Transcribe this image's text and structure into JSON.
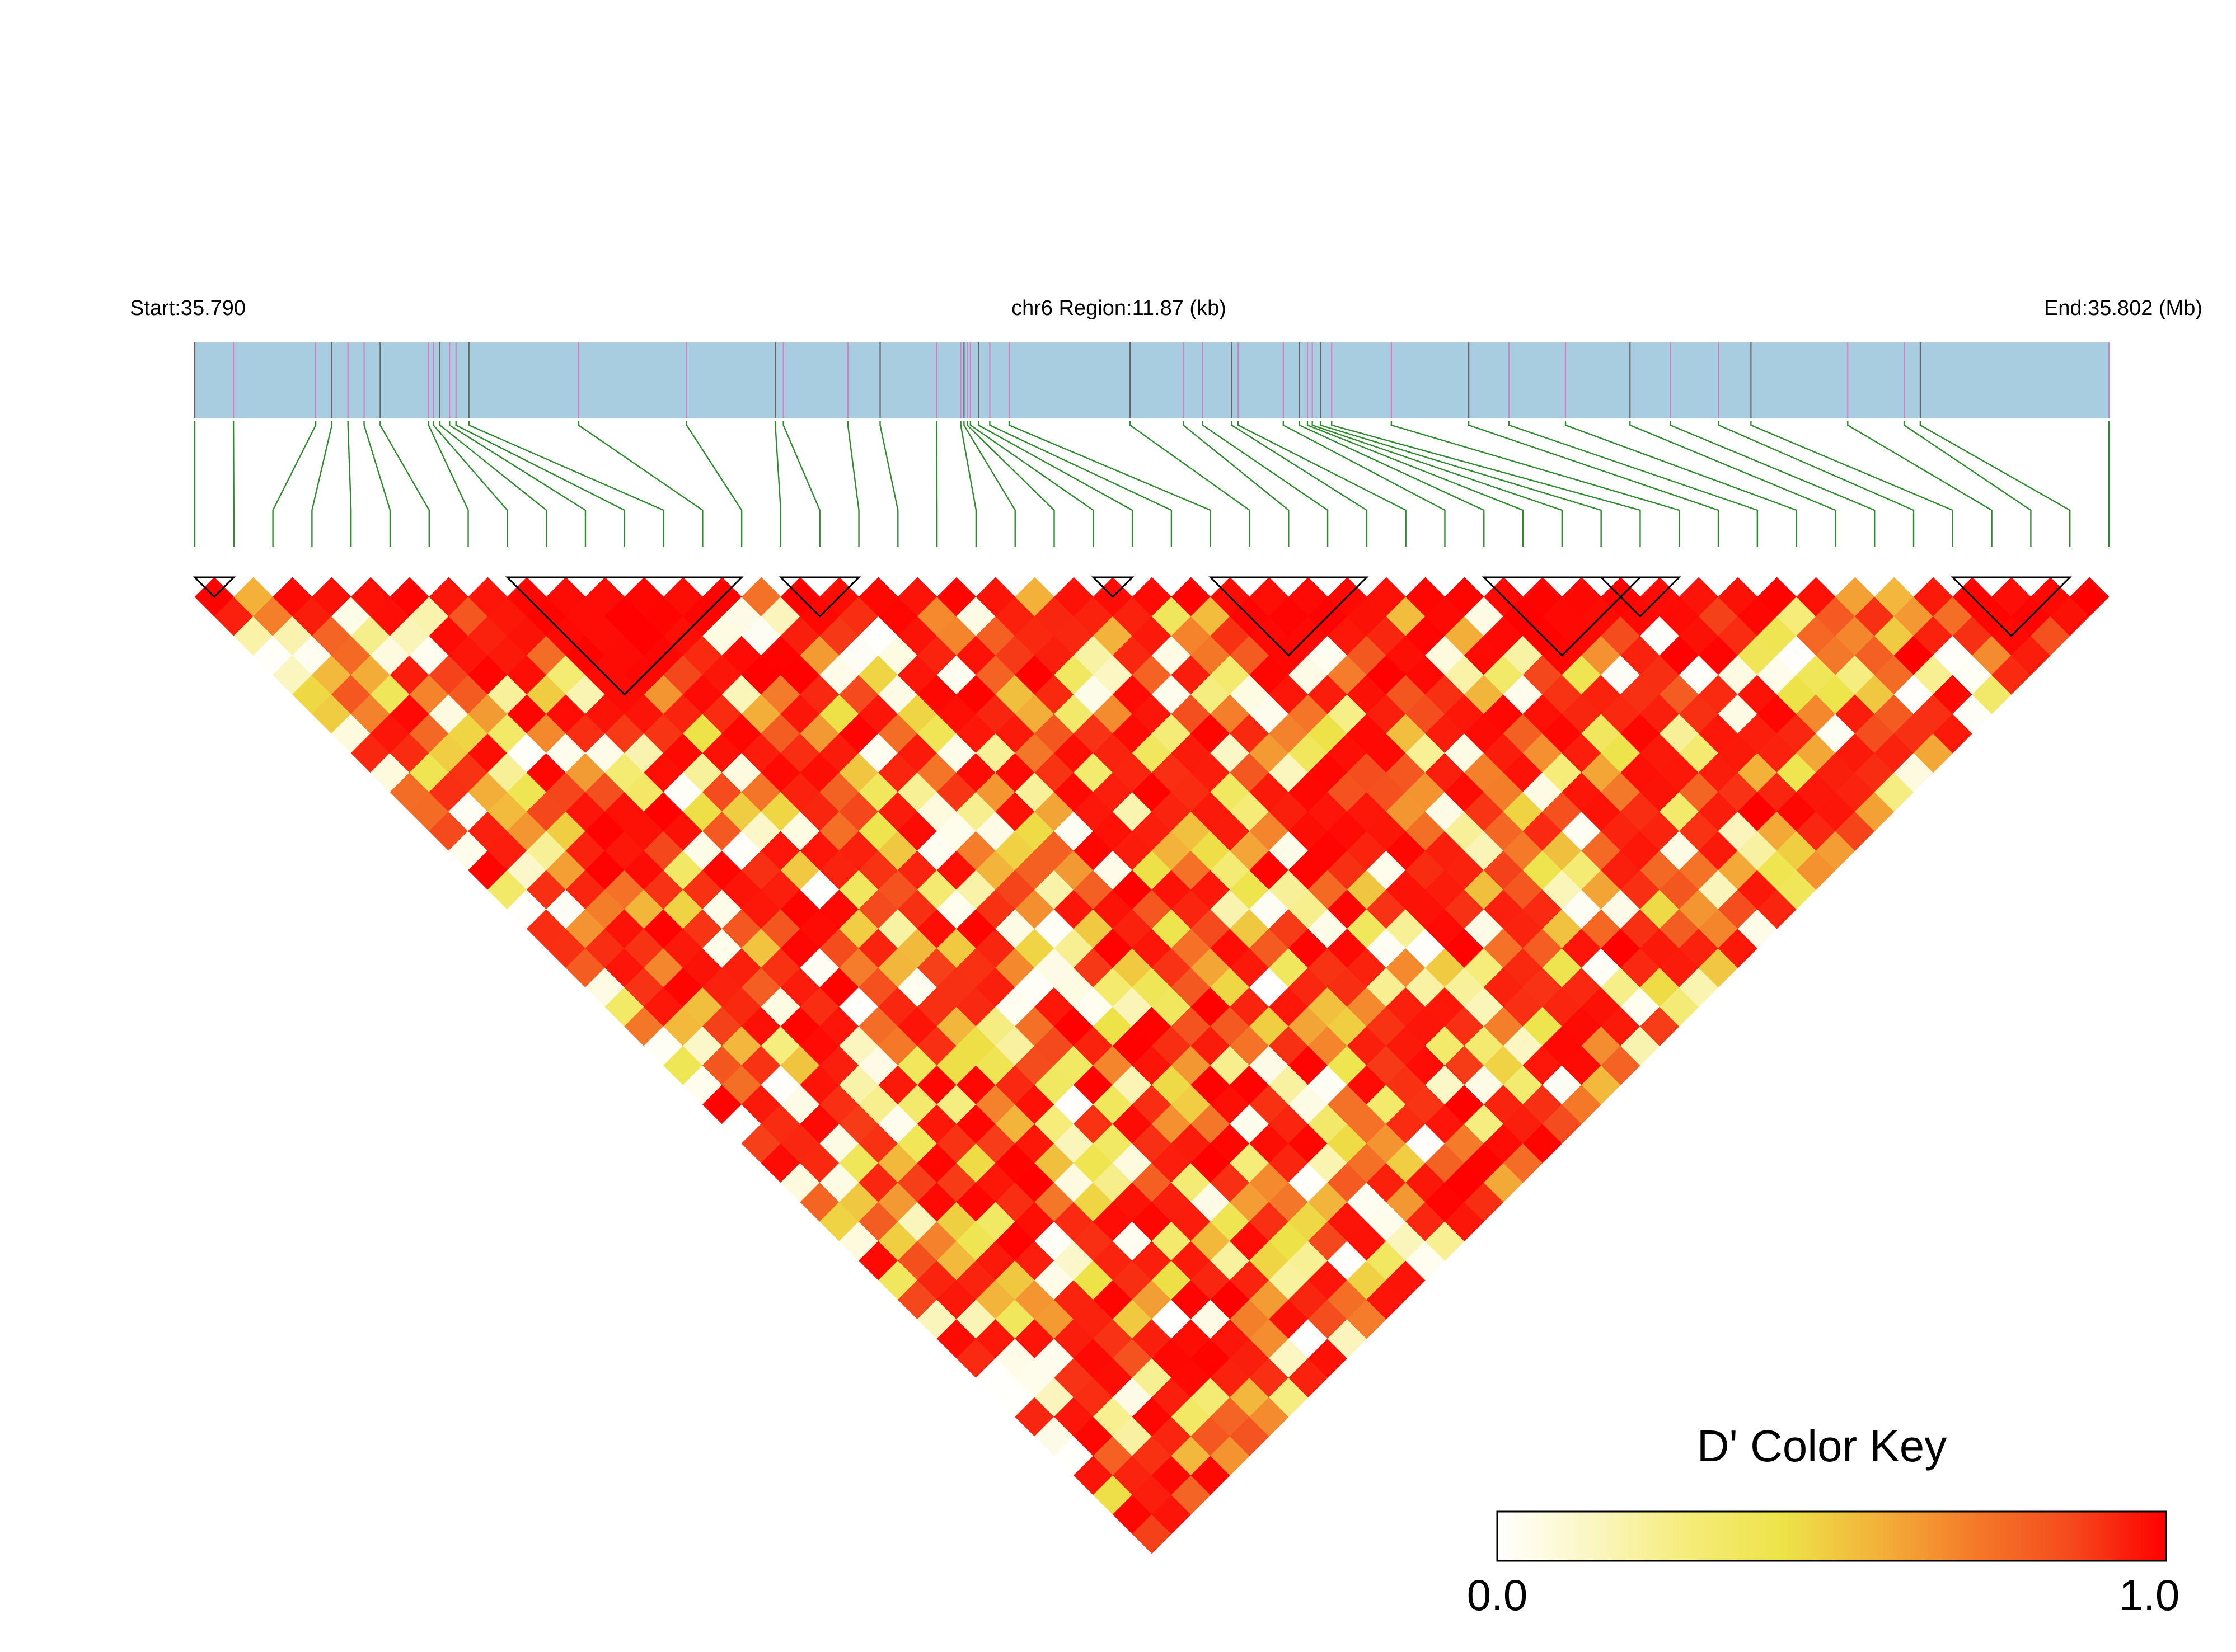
{
  "header": {
    "start_label": "Start:35.790",
    "region_label": "chr6 Region:11.87 (kb)",
    "end_label": "End:35.802 (Mb)"
  },
  "legend": {
    "title": "D' Color Key",
    "min_label": "0.0",
    "max_label": "1.0",
    "gradient_colors": [
      "#ffffff",
      "#fbf6c2",
      "#f5ec7a",
      "#ede348",
      "#f3b13a",
      "#f47a29",
      "#f44a1d",
      "#ff0000"
    ]
  },
  "colors": {
    "track_fill": "#a8cde0",
    "snp_tick_a": "#666666",
    "snp_tick_b": "#d77fc0",
    "connector": "#2e8b2e",
    "block_outline": "#000000"
  },
  "chart_data": {
    "type": "heatmap",
    "title": "",
    "metric": "D'",
    "color_range": [
      0.0,
      1.0
    ],
    "region_start_mb": 35.79,
    "region_end_mb": 35.802,
    "region_length_kb": 11.87,
    "n_snps": 50,
    "snp_positions_mb": [
      35.79,
      35.79024,
      35.79075,
      35.79085,
      35.79095,
      35.79105,
      35.79115,
      35.79145,
      35.79148,
      35.79152,
      35.79158,
      35.79162,
      35.7917,
      35.79238,
      35.79305,
      35.7936,
      35.79365,
      35.79405,
      35.79425,
      35.7946,
      35.79475,
      35.79477,
      35.79479,
      35.79481,
      35.79486,
      35.79493,
      35.79505,
      35.7958,
      35.79613,
      35.79625,
      35.79643,
      35.79647,
      35.79675,
      35.79685,
      35.7969,
      35.79693,
      35.79698,
      35.79705,
      35.79742,
      35.7979,
      35.79815,
      35.7985,
      35.7989,
      35.79915,
      35.79945,
      35.79965,
      35.80025,
      35.8006,
      35.8007,
      35.80187
    ],
    "ld_blocks": [
      {
        "first_snp": 1,
        "last_snp": 2
      },
      {
        "first_snp": 9,
        "last_snp": 15
      },
      {
        "first_snp": 16,
        "last_snp": 18
      },
      {
        "first_snp": 24,
        "last_snp": 25
      },
      {
        "first_snp": 27,
        "last_snp": 31
      },
      {
        "first_snp": 34,
        "last_snp": 38
      },
      {
        "first_snp": 37,
        "last_snp": 39
      },
      {
        "first_snp": 46,
        "last_snp": 49
      }
    ],
    "d_prime_matrix_note": "pairwise D' values from 0 to 1; derived from the figure by eye",
    "d_prime_seed": 20240611
  }
}
